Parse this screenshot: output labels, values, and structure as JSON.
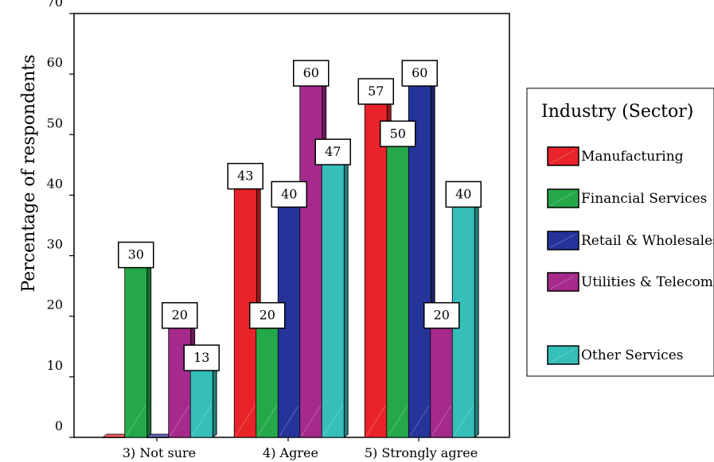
{
  "chart_data": {
    "type": "bar",
    "categories": [
      "3) Not sure",
      "4) Agree",
      "5) Strongly agree"
    ],
    "series": [
      {
        "name": "Manufacturing",
        "color": "#e8232a",
        "values": [
          0,
          43,
          57
        ]
      },
      {
        "name": "Financial Services",
        "color": "#25a84a",
        "values": [
          30,
          20,
          50
        ]
      },
      {
        "name": "Retail & Wholesales",
        "color": "#25349a",
        "values": [
          0,
          40,
          60
        ]
      },
      {
        "name": "Utilities & Telecoms",
        "color": "#a52a8c",
        "values": [
          20,
          60,
          20
        ]
      },
      {
        "name": "Other Services",
        "color": "#35bfb8",
        "values": [
          13,
          47,
          40
        ]
      }
    ],
    "data_labels": [
      [
        null,
        "43",
        "57"
      ],
      [
        "30",
        "20",
        "50"
      ],
      [
        null,
        "40",
        "60"
      ],
      [
        "20",
        "60",
        "20"
      ],
      [
        "13",
        "47",
        "40"
      ]
    ],
    "title": "",
    "xlabel": "",
    "ylabel": "Percentage of respondents",
    "ylim": [
      0,
      70
    ],
    "yticks": [
      0,
      10,
      20,
      30,
      40,
      50,
      60,
      70
    ],
    "legend_title": "Industry (Sector)",
    "legend_position": "right",
    "grid": false
  }
}
